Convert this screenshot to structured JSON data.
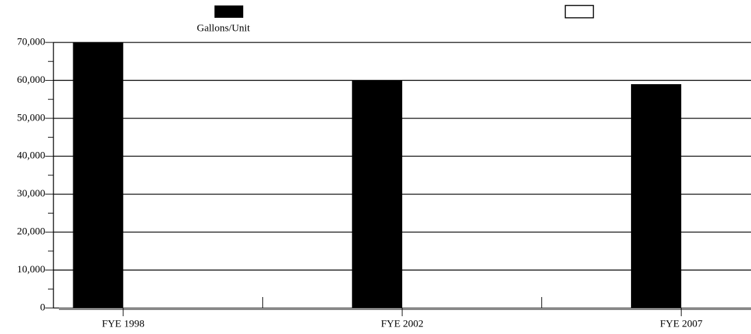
{
  "chart_data": {
    "type": "bar",
    "categories": [
      "FYE 1998",
      "FYE 2002",
      "FYE 2007"
    ],
    "series": [
      {
        "name": "Gallons/Unit",
        "color": "#000000",
        "values": [
          70000,
          60000,
          59000
        ]
      }
    ],
    "ylim": [
      0,
      70000
    ],
    "yticks": [
      {
        "value": 0,
        "label": "0"
      },
      {
        "value": 10000,
        "label": "10,000"
      },
      {
        "value": 20000,
        "label": "20,000"
      },
      {
        "value": 30000,
        "label": "30,000"
      },
      {
        "value": 40000,
        "label": "40,000"
      },
      {
        "value": 50000,
        "label": "50,000"
      },
      {
        "value": 60000,
        "label": "60,000"
      },
      {
        "value": 70000,
        "label": "70,000"
      }
    ],
    "grid": true
  }
}
